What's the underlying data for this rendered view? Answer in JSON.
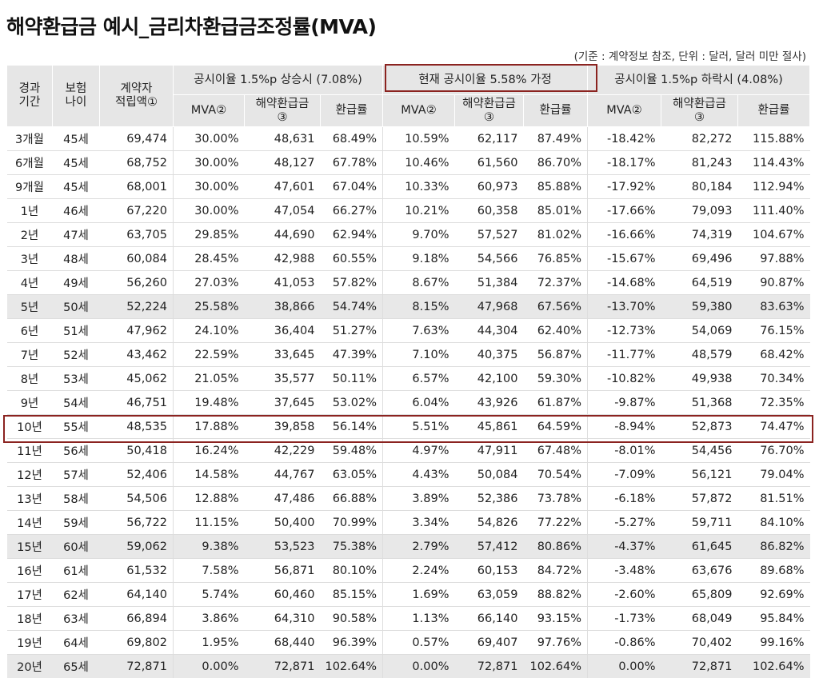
{
  "title": "해약환급금 예시_금리차환급금조정률(MVA)",
  "note": "(기준 : 계약정보 참조, 단위 : 달러, 달러 미만 절사)",
  "headers": {
    "period_l1": "경과",
    "period_l2": "기간",
    "age_l1": "보험",
    "age_l2": "나이",
    "reserve_l1": "계약자",
    "reserve_l2": "적립액①",
    "groups": [
      "공시이율 1.5%p 상승시 (7.08%)",
      "현재 공시이율 5.58% 가정",
      "공시이율 1.5%p 하락시 (4.08%)"
    ],
    "sub_mva": "MVA②",
    "sub_refund_l1": "해약환급금",
    "sub_refund_l2": "③",
    "sub_rate": "환급률"
  },
  "rows": [
    [
      "3개월",
      "45세",
      "69,474",
      "30.00%",
      "48,631",
      "68.49%",
      "10.59%",
      "62,117",
      "87.49%",
      "-18.42%",
      "82,272",
      "115.88%"
    ],
    [
      "6개월",
      "45세",
      "68,752",
      "30.00%",
      "48,127",
      "67.78%",
      "10.46%",
      "61,560",
      "86.70%",
      "-18.17%",
      "81,243",
      "114.43%"
    ],
    [
      "9개월",
      "45세",
      "68,001",
      "30.00%",
      "47,601",
      "67.04%",
      "10.33%",
      "60,973",
      "85.88%",
      "-17.92%",
      "80,184",
      "112.94%"
    ],
    [
      "1년",
      "46세",
      "67,220",
      "30.00%",
      "47,054",
      "66.27%",
      "10.21%",
      "60,358",
      "85.01%",
      "-17.66%",
      "79,093",
      "111.40%"
    ],
    [
      "2년",
      "47세",
      "63,705",
      "29.85%",
      "44,690",
      "62.94%",
      "9.70%",
      "57,527",
      "81.02%",
      "-16.66%",
      "74,319",
      "104.67%"
    ],
    [
      "3년",
      "48세",
      "60,084",
      "28.45%",
      "42,988",
      "60.55%",
      "9.18%",
      "54,566",
      "76.85%",
      "-15.67%",
      "69,496",
      "97.88%"
    ],
    [
      "4년",
      "49세",
      "56,260",
      "27.03%",
      "41,053",
      "57.82%",
      "8.67%",
      "51,384",
      "72.37%",
      "-14.68%",
      "64,519",
      "90.87%"
    ],
    [
      "5년",
      "50세",
      "52,224",
      "25.58%",
      "38,866",
      "54.74%",
      "8.15%",
      "47,968",
      "67.56%",
      "-13.70%",
      "59,380",
      "83.63%"
    ],
    [
      "6년",
      "51세",
      "47,962",
      "24.10%",
      "36,404",
      "51.27%",
      "7.63%",
      "44,304",
      "62.40%",
      "-12.73%",
      "54,069",
      "76.15%"
    ],
    [
      "7년",
      "52세",
      "43,462",
      "22.59%",
      "33,645",
      "47.39%",
      "7.10%",
      "40,375",
      "56.87%",
      "-11.77%",
      "48,579",
      "68.42%"
    ],
    [
      "8년",
      "53세",
      "45,062",
      "21.05%",
      "35,577",
      "50.11%",
      "6.57%",
      "42,100",
      "59.30%",
      "-10.82%",
      "49,938",
      "70.34%"
    ],
    [
      "9년",
      "54세",
      "46,751",
      "19.48%",
      "37,645",
      "53.02%",
      "6.04%",
      "43,926",
      "61.87%",
      "-9.87%",
      "51,368",
      "72.35%"
    ],
    [
      "10년",
      "55세",
      "48,535",
      "17.88%",
      "39,858",
      "56.14%",
      "5.51%",
      "45,861",
      "64.59%",
      "-8.94%",
      "52,873",
      "74.47%"
    ],
    [
      "11년",
      "56세",
      "50,418",
      "16.24%",
      "42,229",
      "59.48%",
      "4.97%",
      "47,911",
      "67.48%",
      "-8.01%",
      "54,456",
      "76.70%"
    ],
    [
      "12년",
      "57세",
      "52,406",
      "14.58%",
      "44,767",
      "63.05%",
      "4.43%",
      "50,084",
      "70.54%",
      "-7.09%",
      "56,121",
      "79.04%"
    ],
    [
      "13년",
      "58세",
      "54,506",
      "12.88%",
      "47,486",
      "66.88%",
      "3.89%",
      "52,386",
      "73.78%",
      "-6.18%",
      "57,872",
      "81.51%"
    ],
    [
      "14년",
      "59세",
      "56,722",
      "11.15%",
      "50,400",
      "70.99%",
      "3.34%",
      "54,826",
      "77.22%",
      "-5.27%",
      "59,711",
      "84.10%"
    ],
    [
      "15년",
      "60세",
      "59,062",
      "9.38%",
      "53,523",
      "75.38%",
      "2.79%",
      "57,412",
      "80.86%",
      "-4.37%",
      "61,645",
      "86.82%"
    ],
    [
      "16년",
      "61세",
      "61,532",
      "7.58%",
      "56,871",
      "80.10%",
      "2.24%",
      "60,153",
      "84.72%",
      "-3.48%",
      "63,676",
      "89.68%"
    ],
    [
      "17년",
      "62세",
      "64,140",
      "5.74%",
      "60,460",
      "85.15%",
      "1.69%",
      "63,059",
      "88.82%",
      "-2.60%",
      "65,809",
      "92.69%"
    ],
    [
      "18년",
      "63세",
      "66,894",
      "3.86%",
      "64,310",
      "90.58%",
      "1.13%",
      "66,140",
      "93.15%",
      "-1.73%",
      "68,049",
      "95.84%"
    ],
    [
      "19년",
      "64세",
      "69,802",
      "1.95%",
      "68,440",
      "96.39%",
      "0.57%",
      "69,407",
      "97.76%",
      "-0.86%",
      "70,402",
      "99.16%"
    ],
    [
      "20년",
      "65세",
      "72,871",
      "0.00%",
      "72,871",
      "102.64%",
      "0.00%",
      "72,871",
      "102.64%",
      "0.00%",
      "72,871",
      "102.64%"
    ]
  ],
  "shaded_rows": [
    "5년",
    "15년",
    "20년"
  ],
  "highlight_color": "#8b2320"
}
